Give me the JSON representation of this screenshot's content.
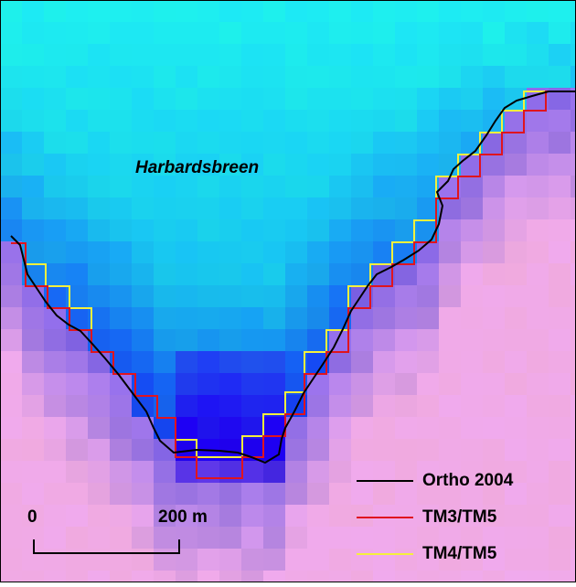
{
  "map": {
    "label": "Harbardsbreen",
    "legend": [
      {
        "name": "Ortho 2004",
        "color": "#000000"
      },
      {
        "name": "TM3/TM5",
        "color": "#e0141e"
      },
      {
        "name": "TM4/TM5",
        "color": "#f5f03c"
      }
    ],
    "scale_bar": {
      "start": "0",
      "end": "200 m"
    }
  }
}
